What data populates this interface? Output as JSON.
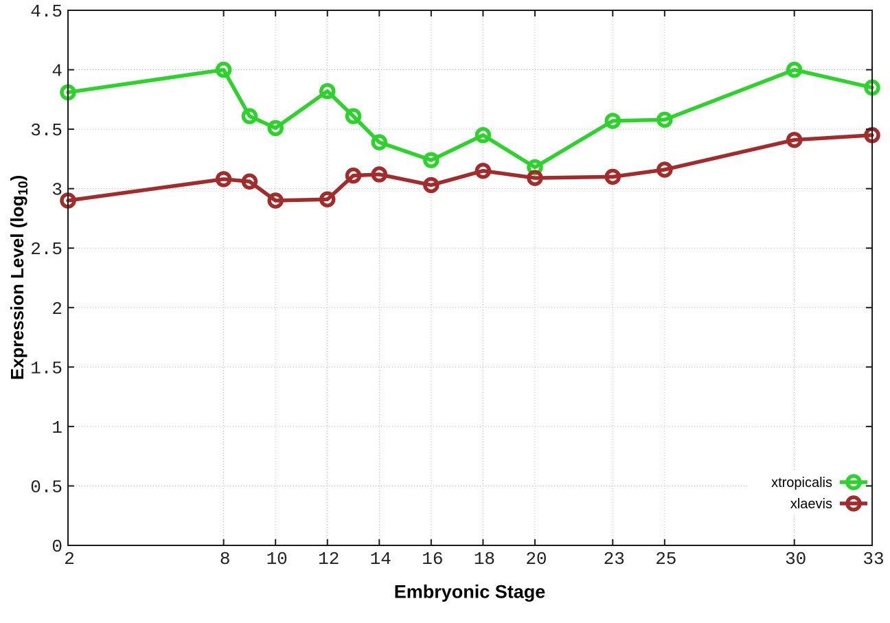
{
  "labels": {
    "xlabel": "Embryonic Stage",
    "ylabel_prefix": "Expression Level (log",
    "ylabel_sub": "10",
    "ylabel_suffix": ")"
  },
  "chart_data": {
    "type": "line",
    "title": "",
    "xlabel": "Embryonic Stage",
    "ylabel": "Expression Level (log10)",
    "xlim": [
      2,
      33
    ],
    "ylim": [
      0,
      4.5
    ],
    "grid": true,
    "grid_style": "dotted",
    "legend_position": "bottom-right",
    "marker": "open-circle",
    "x": [
      2,
      8,
      9,
      10,
      12,
      13,
      14,
      16,
      18,
      20,
      23,
      25,
      30,
      33
    ],
    "xtick_labels": [
      "2",
      "8",
      "10",
      "12",
      "14",
      "16",
      "18",
      "20",
      "23",
      "25",
      "30",
      "33"
    ],
    "ytick_labels": [
      "0",
      "0.5",
      "1",
      "1.5",
      "2",
      "2.5",
      "3",
      "3.5",
      "4",
      "4.5"
    ],
    "series": [
      {
        "name": "xtropicalis",
        "color": "#2bd32b",
        "values": [
          3.81,
          4.0,
          3.61,
          3.51,
          3.82,
          3.61,
          3.39,
          3.24,
          3.45,
          3.18,
          3.57,
          3.58,
          4.0,
          3.85
        ]
      },
      {
        "name": "xlaevis",
        "color": "#a32b2b",
        "values": [
          2.9,
          3.08,
          3.06,
          2.9,
          2.91,
          3.11,
          3.12,
          3.03,
          3.15,
          3.09,
          3.1,
          3.16,
          3.41,
          3.45
        ]
      }
    ],
    "colors": {
      "grid": "#b9b9b9",
      "axis": "#1a1a1a",
      "tick_text": "#222222",
      "background": "#ffffff"
    }
  }
}
